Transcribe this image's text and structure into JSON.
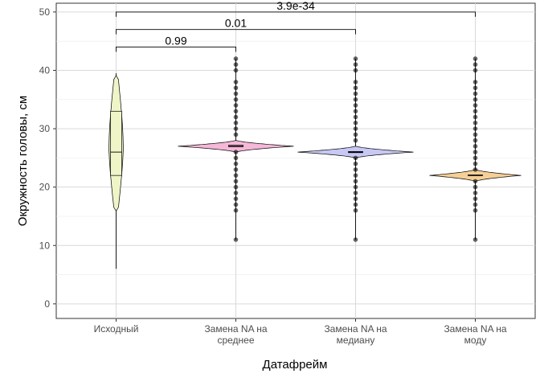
{
  "chart_data": {
    "type": "violin",
    "title": "",
    "xlabel": "Датафрейм",
    "ylabel": "Окружность головы, см",
    "ylim": [
      -2.5,
      51.5
    ],
    "yticks": [
      0,
      10,
      20,
      30,
      40,
      50
    ],
    "grid": true,
    "categories": [
      {
        "lines": [
          "Исходный"
        ],
        "color": "#f0f5c8"
      },
      {
        "lines": [
          "Замена NA на",
          "среднее"
        ],
        "color": "#f5b8d8"
      },
      {
        "lines": [
          "Замена NA на",
          "медиану"
        ],
        "color": "#c8c8f5"
      },
      {
        "lines": [
          "Замена NA на",
          "моду"
        ],
        "color": "#f5cf96"
      }
    ],
    "series": [
      {
        "violin_range": [
          16,
          39
        ],
        "box": {
          "q1": 22,
          "median": 26,
          "q3": 33
        },
        "whisker": [
          6,
          39.5
        ],
        "outliers": []
      },
      {
        "violin_range": [
          26,
          28
        ],
        "box": {
          "q1": 26.9,
          "median": 27,
          "q3": 27.2
        },
        "whisker": [
          11,
          42
        ],
        "outliers": [
          11,
          16,
          17,
          18,
          19,
          20,
          21,
          22,
          23,
          24,
          25,
          26,
          29,
          30,
          31,
          32,
          33,
          34,
          35,
          36,
          37,
          38,
          40,
          41,
          42
        ]
      },
      {
        "violin_range": [
          25,
          27
        ],
        "box": {
          "q1": 25.9,
          "median": 26,
          "q3": 26.1
        },
        "whisker": [
          11,
          42
        ],
        "outliers": [
          11,
          16,
          17,
          18,
          19,
          20,
          21,
          22,
          23,
          24,
          25,
          28,
          29,
          30,
          31,
          32,
          33,
          34,
          35,
          36,
          37,
          38,
          40,
          41,
          42
        ]
      },
      {
        "violin_range": [
          21,
          23
        ],
        "box": {
          "q1": 22,
          "median": 22,
          "q3": 22.1
        },
        "whisker": [
          11,
          42
        ],
        "outliers": [
          11,
          16,
          17,
          18,
          19,
          20,
          21,
          23,
          24,
          25,
          26,
          27,
          28,
          29,
          30,
          31,
          32,
          33,
          34,
          35,
          36,
          37,
          38,
          40,
          41,
          42
        ]
      }
    ],
    "comparisons": [
      {
        "from": 0,
        "to": 1,
        "label": "0.99"
      },
      {
        "from": 0,
        "to": 2,
        "label": "0.01"
      },
      {
        "from": 0,
        "to": 3,
        "label": "3.9e-34"
      }
    ]
  }
}
